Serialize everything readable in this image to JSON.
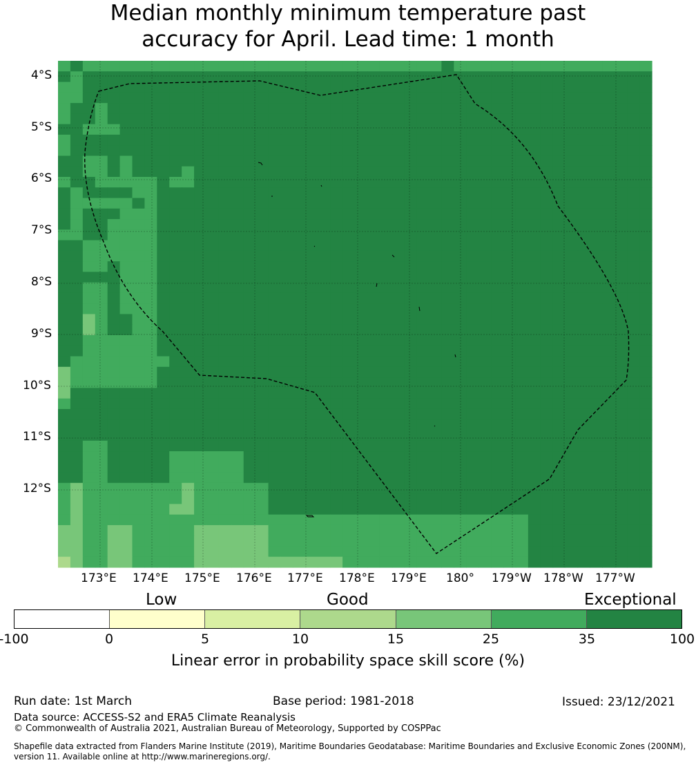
{
  "title": {
    "line1": "Median monthly minimum temperature past",
    "line2": "accuracy for April. Lead time: 1 month"
  },
  "map": {
    "lat_labels": [
      "4°S",
      "5°S",
      "6°S",
      "7°S",
      "8°S",
      "9°S",
      "10°S",
      "11°S",
      "12°S"
    ],
    "lon_labels": [
      "173°E",
      "174°E",
      "175°E",
      "176°E",
      "177°E",
      "178°E",
      "179°E",
      "180°",
      "179°W",
      "178°W",
      "177°W"
    ],
    "grid_colors": {
      "0": "#d9f0a3",
      "1": "#add98c",
      "2": "#78c679",
      "3": "#41ab5d",
      "4": "#238443"
    },
    "cell_classes": [
      "343333333333333333333333333333343333333333333333",
      "434444444444444444444444444444444444444444444444",
      "334444444444444444444444444444444444444444444444",
      "334444444444444444444444444444444444444444444444",
      "344344444444444444444444444444444444444444444444",
      "344344444444444444444444444444444444444444444444",
      "443334444444444444444444444444444444444444444444",
      "344444444444444444444444444444444444444444444444",
      "344444444444444444444444444444444444444444444444",
      "443343444444444444444444444444444444444444444444",
      "443343444434444444444444444444444444444444444444",
      "344333334334444444444444444444444444444444444444",
      "434444334444444444444444444444444444444444444444",
      "433333434444444444444444444444444444444444444444",
      "434443334444444444444444444444444444444444444444",
      "434433334444444444444444444444444444444444444444",
      "334433334444444444444444444444444444444444444444",
      "443333334444444444444444444444444444444444444444",
      "443333334444444444444444444444444444444444444444",
      "443343334444444444444444444444444444444444444444",
      "444443334444444444444444444444444444444444444444",
      "443343334444444444444444444444444444444444444444",
      "443343334444444444444444444444444444444444444444",
      "443343334444444444444444444444444444444444444444",
      "442344334444444444444444444444444444444444444444",
      "442344334444444444444444444444444444444444444444",
      "443333334444444444444444444444444444444444444444",
      "443333334444444444444444444444444444444444444444",
      "433333333444444444444444444444444444444444444444",
      "233333334444444444444444444444444444444444444444",
      "233333334444444444444444444444444444444444444444",
      "244444444444444444444444444444444444444444444444",
      "344444444444444444444444444444444444444444444444",
      "444444444444444444444444444444444444444444444444",
      "444444444444444444444444444444444444444444444444",
      "444444444444444444444444444444444444444444444444",
      "443344444444444444444444444444444444444444444444",
      "443344444333333444444444444444444444444444444444",
      "443344444333333444444444444444444444444444444444",
      "443344444333333444444444444444444444444444444444",
      "323333333323333334444444444444444444444444444444",
      "323333333323333334444444444444444444444444444444",
      "323333333223333334444444444444444444444444444444",
      "323333333333333333333333333333333333334444444444",
      "223322333332222223333333333333333333334444444444",
      "223322333332222223333333333333333333334444444444",
      "223322333332222223333333333333333333334444444444",
      "123322333332222222222223333333333333334444444444"
    ],
    "eez_label": "",
    "islands": [
      "",
      "",
      ""
    ]
  },
  "colorbar": {
    "category_labels": [
      "Low",
      "Good",
      "Exceptional"
    ],
    "ticks": [
      "-100",
      "0",
      "5",
      "10",
      "15",
      "25",
      "35",
      "100"
    ],
    "colors": [
      "#ffffff",
      "#ffffcc",
      "#d9f0a3",
      "#add98c",
      "#78c679",
      "#41ab5d",
      "#238443"
    ],
    "label": "Linear error in probability space skill score (%)"
  },
  "footer": {
    "run_date": "Run date: 1st March",
    "base_period": "Base period: 1981-2018",
    "issued": "Issued: 23/12/2021",
    "data_source": "Data source: ACCESS-S2 and ERA5 Climate Reanalysis",
    "copyright": "© Commonwealth of Australia 2021, Australian Bureau of Meteorology, Supported by COSPPac",
    "shapefile_line1": "Shapefile data extracted from Flanders Marine Institute (2019), Maritime Boundaries Geodatabase: Maritime Boundaries and Exclusive Economic Zones (200NM),",
    "shapefile_line2": "version 11. Available online at http://www.marineregions.org/."
  }
}
